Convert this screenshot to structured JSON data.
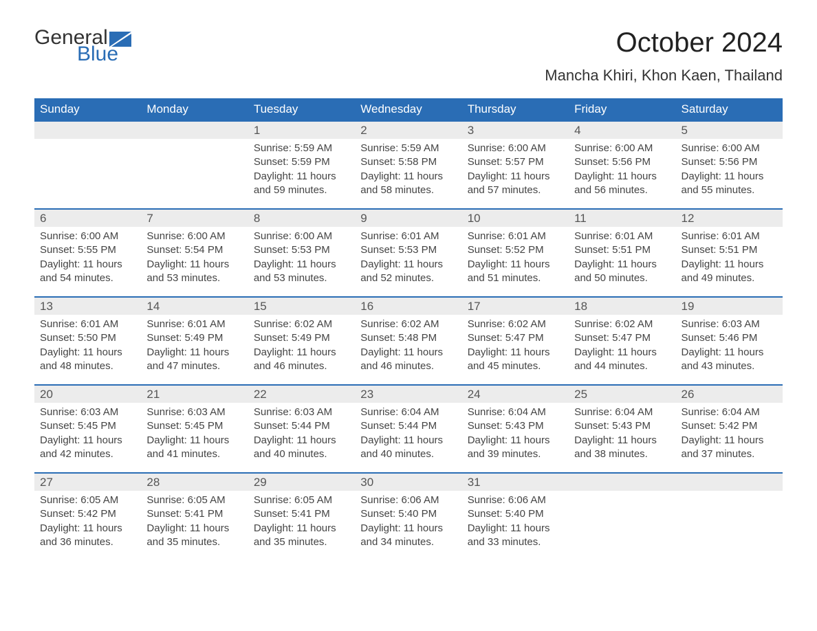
{
  "logo": {
    "word1": "General",
    "word2": "Blue",
    "flag_color": "#2a6db5",
    "text_color": "#333333"
  },
  "title": "October 2024",
  "location": "Mancha Khiri, Khon Kaen, Thailand",
  "colors": {
    "header_bg": "#2a6db5",
    "header_fg": "#ffffff",
    "row_band": "#ececec",
    "rule": "#2a6db5",
    "body_text": "#444444"
  },
  "weekdays": [
    "Sunday",
    "Monday",
    "Tuesday",
    "Wednesday",
    "Thursday",
    "Friday",
    "Saturday"
  ],
  "weeks": [
    [
      null,
      null,
      {
        "n": "1",
        "sr": "Sunrise: 5:59 AM",
        "ss": "Sunset: 5:59 PM",
        "d1": "Daylight: 11 hours",
        "d2": "and 59 minutes."
      },
      {
        "n": "2",
        "sr": "Sunrise: 5:59 AM",
        "ss": "Sunset: 5:58 PM",
        "d1": "Daylight: 11 hours",
        "d2": "and 58 minutes."
      },
      {
        "n": "3",
        "sr": "Sunrise: 6:00 AM",
        "ss": "Sunset: 5:57 PM",
        "d1": "Daylight: 11 hours",
        "d2": "and 57 minutes."
      },
      {
        "n": "4",
        "sr": "Sunrise: 6:00 AM",
        "ss": "Sunset: 5:56 PM",
        "d1": "Daylight: 11 hours",
        "d2": "and 56 minutes."
      },
      {
        "n": "5",
        "sr": "Sunrise: 6:00 AM",
        "ss": "Sunset: 5:56 PM",
        "d1": "Daylight: 11 hours",
        "d2": "and 55 minutes."
      }
    ],
    [
      {
        "n": "6",
        "sr": "Sunrise: 6:00 AM",
        "ss": "Sunset: 5:55 PM",
        "d1": "Daylight: 11 hours",
        "d2": "and 54 minutes."
      },
      {
        "n": "7",
        "sr": "Sunrise: 6:00 AM",
        "ss": "Sunset: 5:54 PM",
        "d1": "Daylight: 11 hours",
        "d2": "and 53 minutes."
      },
      {
        "n": "8",
        "sr": "Sunrise: 6:00 AM",
        "ss": "Sunset: 5:53 PM",
        "d1": "Daylight: 11 hours",
        "d2": "and 53 minutes."
      },
      {
        "n": "9",
        "sr": "Sunrise: 6:01 AM",
        "ss": "Sunset: 5:53 PM",
        "d1": "Daylight: 11 hours",
        "d2": "and 52 minutes."
      },
      {
        "n": "10",
        "sr": "Sunrise: 6:01 AM",
        "ss": "Sunset: 5:52 PM",
        "d1": "Daylight: 11 hours",
        "d2": "and 51 minutes."
      },
      {
        "n": "11",
        "sr": "Sunrise: 6:01 AM",
        "ss": "Sunset: 5:51 PM",
        "d1": "Daylight: 11 hours",
        "d2": "and 50 minutes."
      },
      {
        "n": "12",
        "sr": "Sunrise: 6:01 AM",
        "ss": "Sunset: 5:51 PM",
        "d1": "Daylight: 11 hours",
        "d2": "and 49 minutes."
      }
    ],
    [
      {
        "n": "13",
        "sr": "Sunrise: 6:01 AM",
        "ss": "Sunset: 5:50 PM",
        "d1": "Daylight: 11 hours",
        "d2": "and 48 minutes."
      },
      {
        "n": "14",
        "sr": "Sunrise: 6:01 AM",
        "ss": "Sunset: 5:49 PM",
        "d1": "Daylight: 11 hours",
        "d2": "and 47 minutes."
      },
      {
        "n": "15",
        "sr": "Sunrise: 6:02 AM",
        "ss": "Sunset: 5:49 PM",
        "d1": "Daylight: 11 hours",
        "d2": "and 46 minutes."
      },
      {
        "n": "16",
        "sr": "Sunrise: 6:02 AM",
        "ss": "Sunset: 5:48 PM",
        "d1": "Daylight: 11 hours",
        "d2": "and 46 minutes."
      },
      {
        "n": "17",
        "sr": "Sunrise: 6:02 AM",
        "ss": "Sunset: 5:47 PM",
        "d1": "Daylight: 11 hours",
        "d2": "and 45 minutes."
      },
      {
        "n": "18",
        "sr": "Sunrise: 6:02 AM",
        "ss": "Sunset: 5:47 PM",
        "d1": "Daylight: 11 hours",
        "d2": "and 44 minutes."
      },
      {
        "n": "19",
        "sr": "Sunrise: 6:03 AM",
        "ss": "Sunset: 5:46 PM",
        "d1": "Daylight: 11 hours",
        "d2": "and 43 minutes."
      }
    ],
    [
      {
        "n": "20",
        "sr": "Sunrise: 6:03 AM",
        "ss": "Sunset: 5:45 PM",
        "d1": "Daylight: 11 hours",
        "d2": "and 42 minutes."
      },
      {
        "n": "21",
        "sr": "Sunrise: 6:03 AM",
        "ss": "Sunset: 5:45 PM",
        "d1": "Daylight: 11 hours",
        "d2": "and 41 minutes."
      },
      {
        "n": "22",
        "sr": "Sunrise: 6:03 AM",
        "ss": "Sunset: 5:44 PM",
        "d1": "Daylight: 11 hours",
        "d2": "and 40 minutes."
      },
      {
        "n": "23",
        "sr": "Sunrise: 6:04 AM",
        "ss": "Sunset: 5:44 PM",
        "d1": "Daylight: 11 hours",
        "d2": "and 40 minutes."
      },
      {
        "n": "24",
        "sr": "Sunrise: 6:04 AM",
        "ss": "Sunset: 5:43 PM",
        "d1": "Daylight: 11 hours",
        "d2": "and 39 minutes."
      },
      {
        "n": "25",
        "sr": "Sunrise: 6:04 AM",
        "ss": "Sunset: 5:43 PM",
        "d1": "Daylight: 11 hours",
        "d2": "and 38 minutes."
      },
      {
        "n": "26",
        "sr": "Sunrise: 6:04 AM",
        "ss": "Sunset: 5:42 PM",
        "d1": "Daylight: 11 hours",
        "d2": "and 37 minutes."
      }
    ],
    [
      {
        "n": "27",
        "sr": "Sunrise: 6:05 AM",
        "ss": "Sunset: 5:42 PM",
        "d1": "Daylight: 11 hours",
        "d2": "and 36 minutes."
      },
      {
        "n": "28",
        "sr": "Sunrise: 6:05 AM",
        "ss": "Sunset: 5:41 PM",
        "d1": "Daylight: 11 hours",
        "d2": "and 35 minutes."
      },
      {
        "n": "29",
        "sr": "Sunrise: 6:05 AM",
        "ss": "Sunset: 5:41 PM",
        "d1": "Daylight: 11 hours",
        "d2": "and 35 minutes."
      },
      {
        "n": "30",
        "sr": "Sunrise: 6:06 AM",
        "ss": "Sunset: 5:40 PM",
        "d1": "Daylight: 11 hours",
        "d2": "and 34 minutes."
      },
      {
        "n": "31",
        "sr": "Sunrise: 6:06 AM",
        "ss": "Sunset: 5:40 PM",
        "d1": "Daylight: 11 hours",
        "d2": "and 33 minutes."
      },
      null,
      null
    ]
  ]
}
